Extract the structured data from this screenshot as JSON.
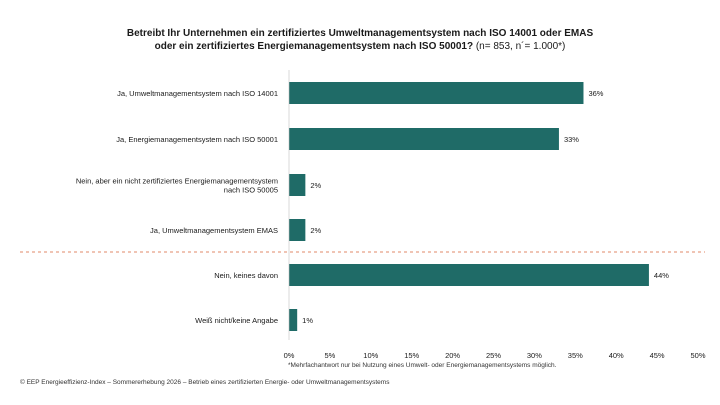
{
  "chart_data": {
    "type": "bar",
    "orientation": "horizontal",
    "title_bold_line1": "Betreibt Ihr Unternehmen ein zertifiziertes Umweltmanagementsystem nach ISO 14001 oder EMAS",
    "title_bold_line2": "oder ein zertifiziertes Energiemanagementsystem nach ISO 50001?",
    "title_suffix": " (n= 853, n´= 1.000*)",
    "categories": [
      "Ja, Umweltmanagementsystem nach ISO 14001",
      "Ja, Energiemanagementsystem nach ISO 50001",
      "Nein, aber ein nicht zertifiziertes Energiemanagementsystem nach ISO 50005",
      "Ja, Umweltmanagementsystem EMAS",
      "Nein, keines davon",
      "Weiß nicht/keine Angabe"
    ],
    "values": [
      36,
      33,
      2,
      2,
      44,
      1
    ],
    "value_labels": [
      "36%",
      "33%",
      "2%",
      "2%",
      "44%",
      "1%"
    ],
    "xlim": [
      0,
      50
    ],
    "xticks": [
      "0%",
      "5%",
      "10%",
      "15%",
      "20%",
      "25%",
      "30%",
      "35%",
      "40%",
      "45%",
      "50%"
    ],
    "separator_after_index": 3,
    "bar_color": "#1f6b67",
    "separator_color": "#e0896a"
  },
  "footnote": "*Mehrfachantwort nur bei Nutzung eines Umwelt- oder Energiemanagementsystems möglich.",
  "copyright": "© EEP Energieeffizienz-Index – Sommererhebung 2026 – Betrieb eines zertifizierten Energie- oder Umweltmanagementsystems"
}
